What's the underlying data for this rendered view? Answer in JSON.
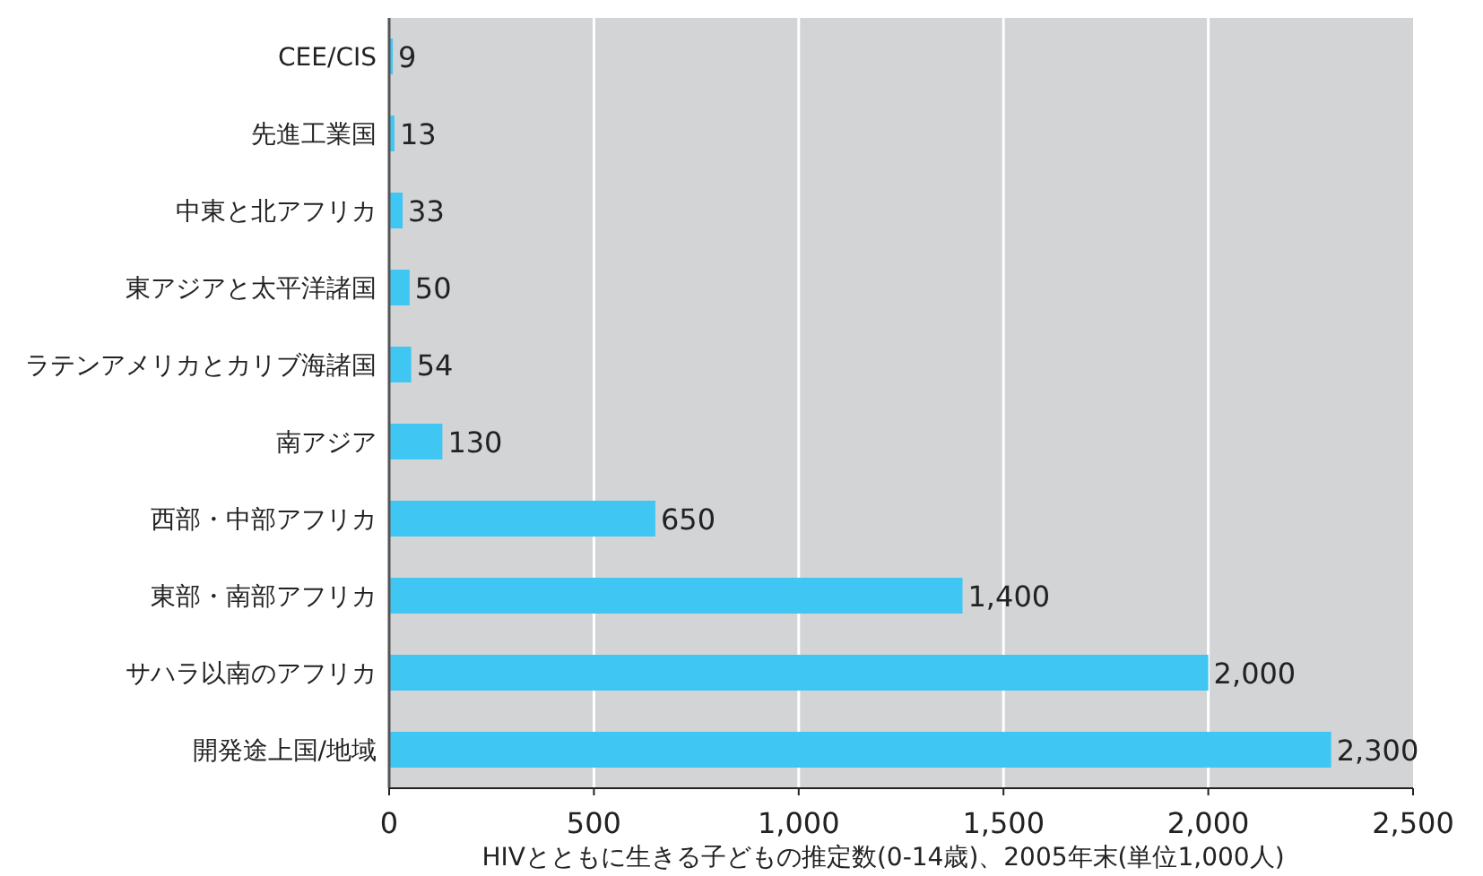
{
  "chart_data": {
    "type": "bar",
    "orientation": "horizontal",
    "xlabel": "HIVとともに生きる子どもの推定数(0-14歳)、2005年末(単位1,000人)",
    "categories": [
      "CEE/CIS",
      "先進工業国",
      "中東と北アフリカ",
      "東アジアと太平洋諸国",
      "ラテンアメリカとカリブ海諸国",
      "南アジア",
      "西部・中部アフリカ",
      "東部・南部アフリカ",
      "サハラ以南のアフリカ",
      "開発途上国/地域"
    ],
    "values": [
      9,
      13,
      33,
      50,
      54,
      130,
      650,
      1400,
      2000,
      2300
    ],
    "value_labels": [
      "9",
      "13",
      "33",
      "50",
      "54",
      "130",
      "650",
      "1,400",
      "2,000",
      "2,300"
    ],
    "color": "#40c6f2",
    "xlim": [
      0,
      2500
    ],
    "xticks": [
      0,
      500,
      {
        "value": 1000,
        "label": "1,000"
      },
      {
        "value": 1500,
        "label": "1,500"
      },
      {
        "value": 2000,
        "label": "2,000"
      },
      {
        "value": 2500,
        "label": "2,500"
      }
    ],
    "grid": "x"
  }
}
